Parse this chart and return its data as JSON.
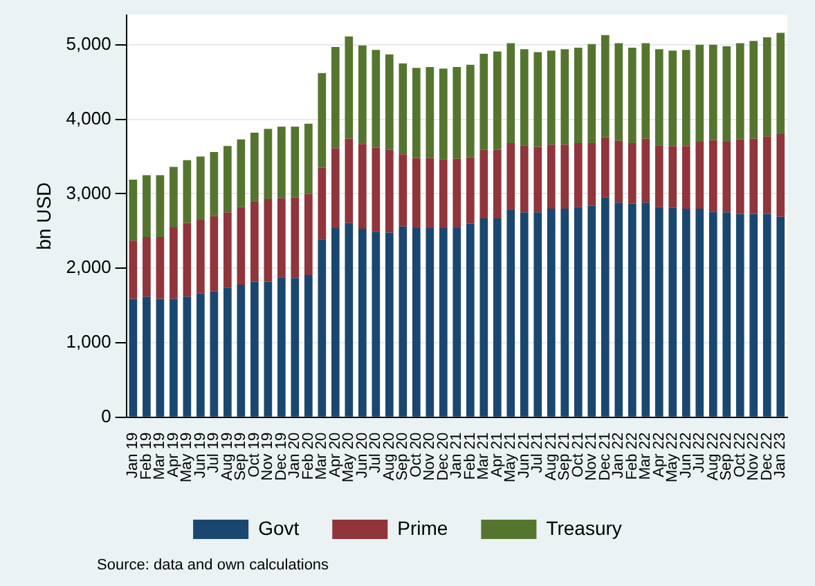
{
  "chart_data": {
    "type": "bar",
    "stacked": true,
    "ylabel": "bn USD",
    "categories": [
      "Jan 19",
      "Feb 19",
      "Mar 19",
      "Apr 19",
      "May 19",
      "Jun 19",
      "Jul 19",
      "Aug 19",
      "Sep 19",
      "Oct 19",
      "Nov 19",
      "Dec 19",
      "Jan 20",
      "Feb 20",
      "Mar 20",
      "Apr 20",
      "May 20",
      "Jun 20",
      "Jul 20",
      "Aug 20",
      "Sep 20",
      "Oct 20",
      "Nov 20",
      "Dec 20",
      "Jan 21",
      "Feb 21",
      "Mar 21",
      "Apr 21",
      "May 21",
      "Jun 21",
      "Jul 21",
      "Aug 21",
      "Sep 21",
      "Oct 21",
      "Nov 21",
      "Dec 21",
      "Jan 22",
      "Feb 22",
      "Mar 22",
      "Apr 22",
      "May 22",
      "Jun 22",
      "Jul 22",
      "Aug 22",
      "Sep 22",
      "Oct 22",
      "Nov 22",
      "Dec 22",
      "Jan 23"
    ],
    "series": [
      {
        "name": "Govt",
        "color": "#1a476f",
        "values": [
          1590,
          1620,
          1590,
          1590,
          1620,
          1660,
          1690,
          1740,
          1780,
          1820,
          1820,
          1880,
          1870,
          1910,
          2390,
          2540,
          2610,
          2530,
          2490,
          2480,
          2560,
          2540,
          2540,
          2540,
          2540,
          2600,
          2670,
          2670,
          2780,
          2750,
          2750,
          2800,
          2800,
          2820,
          2840,
          2950,
          2880,
          2870,
          2880,
          2820,
          2810,
          2800,
          2800,
          2760,
          2750,
          2730,
          2730,
          2730,
          2690
        ]
      },
      {
        "name": "Prime",
        "color": "#90353b",
        "values": [
          780,
          800,
          830,
          960,
          990,
          990,
          1010,
          1010,
          1040,
          1080,
          1110,
          1060,
          1080,
          1090,
          960,
          1070,
          1130,
          1140,
          1130,
          1110,
          970,
          940,
          940,
          920,
          930,
          890,
          920,
          920,
          900,
          900,
          880,
          860,
          860,
          860,
          840,
          810,
          830,
          810,
          860,
          830,
          830,
          840,
          900,
          960,
          950,
          1000,
          1010,
          1040,
          1110
        ]
      },
      {
        "name": "Treasury",
        "color": "#55752f",
        "values": [
          820,
          830,
          830,
          810,
          840,
          850,
          860,
          890,
          910,
          920,
          940,
          960,
          950,
          940,
          1270,
          1360,
          1370,
          1320,
          1310,
          1280,
          1220,
          1210,
          1220,
          1220,
          1230,
          1240,
          1290,
          1320,
          1340,
          1290,
          1270,
          1260,
          1280,
          1280,
          1330,
          1370,
          1310,
          1280,
          1280,
          1290,
          1280,
          1290,
          1300,
          1280,
          1280,
          1290,
          1310,
          1330,
          1360
        ]
      }
    ],
    "ylim": [
      0,
      5400
    ],
    "yticks": [
      {
        "value": 0,
        "label": "0"
      },
      {
        "value": 1000,
        "label": "1,000"
      },
      {
        "value": 2000,
        "label": "2,000"
      },
      {
        "value": 3000,
        "label": "3,000"
      },
      {
        "value": 4000,
        "label": "4,000"
      },
      {
        "value": 5000,
        "label": "5,000"
      }
    ],
    "grid": "y",
    "legend": "bottom",
    "annotations": [
      "Source: data and own calculations"
    ]
  }
}
